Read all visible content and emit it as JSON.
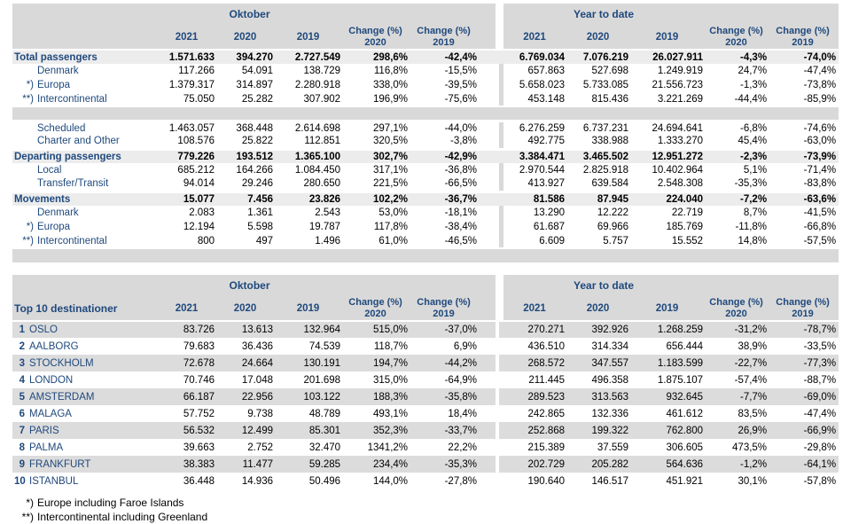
{
  "colors": {
    "accent_navy": "#1F497D",
    "band_gray": "#D9D9D9",
    "section_gray": "#ECECEC",
    "stripe_gray": "#DCDCDC"
  },
  "header": {
    "group_left": "Oktober",
    "group_right": "Year to date",
    "years": [
      "2021",
      "2020",
      "2019"
    ],
    "change_label": "Change (%)",
    "change_years": [
      "2020",
      "2019"
    ]
  },
  "main_table": {
    "rows": [
      {
        "type": "section",
        "label": "Total passengers",
        "values": [
          "1.571.633",
          "394.270",
          "2.727.549",
          "298,6%",
          "-42,4%",
          "6.769.034",
          "7.076.219",
          "26.027.911",
          "-4,3%",
          "-74,0%"
        ]
      },
      {
        "type": "item",
        "marker": "",
        "label": "Denmark",
        "values": [
          "117.266",
          "54.091",
          "138.729",
          "116,8%",
          "-15,5%",
          "657.863",
          "527.698",
          "1.249.919",
          "24,7%",
          "-47,4%"
        ]
      },
      {
        "type": "item",
        "marker": "*)",
        "label": "Europa",
        "values": [
          "1.379.317",
          "314.897",
          "2.280.918",
          "338,0%",
          "-39,5%",
          "5.658.023",
          "5.733.085",
          "21.556.723",
          "-1,3%",
          "-73,8%"
        ]
      },
      {
        "type": "item",
        "marker": "**)",
        "label": "Intercontinental",
        "values": [
          "75.050",
          "25.282",
          "307.902",
          "196,9%",
          "-75,6%",
          "453.148",
          "815.436",
          "3.221.269",
          "-44,4%",
          "-85,9%"
        ]
      },
      {
        "type": "separator"
      },
      {
        "type": "item",
        "marker": "",
        "label": "Scheduled",
        "values": [
          "1.463.057",
          "368.448",
          "2.614.698",
          "297,1%",
          "-44,0%",
          "6.276.259",
          "6.737.231",
          "24.694.641",
          "-6,8%",
          "-74,6%"
        ]
      },
      {
        "type": "item",
        "marker": "",
        "label": "Charter and Other",
        "values": [
          "108.576",
          "25.822",
          "112.851",
          "320,5%",
          "-3,8%",
          "492.775",
          "338.988",
          "1.333.270",
          "45,4%",
          "-63,0%"
        ]
      },
      {
        "type": "section",
        "gap": true,
        "label": "Departing passengers",
        "values": [
          "779.226",
          "193.512",
          "1.365.100",
          "302,7%",
          "-42,9%",
          "3.384.471",
          "3.465.502",
          "12.951.272",
          "-2,3%",
          "-73,9%"
        ]
      },
      {
        "type": "item",
        "marker": "",
        "label": "Local",
        "values": [
          "685.212",
          "164.266",
          "1.084.450",
          "317,1%",
          "-36,8%",
          "2.970.544",
          "2.825.918",
          "10.402.964",
          "5,1%",
          "-71,4%"
        ]
      },
      {
        "type": "item",
        "marker": "",
        "label": "Transfer/Transit",
        "values": [
          "94.014",
          "29.246",
          "280.650",
          "221,5%",
          "-66,5%",
          "413.927",
          "639.584",
          "2.548.308",
          "-35,3%",
          "-83,8%"
        ]
      },
      {
        "type": "section",
        "gap": true,
        "label": "Movements",
        "values": [
          "15.077",
          "7.456",
          "23.826",
          "102,2%",
          "-36,7%",
          "81.586",
          "87.945",
          "224.040",
          "-7,2%",
          "-63,6%"
        ]
      },
      {
        "type": "item",
        "marker": "",
        "label": "Denmark",
        "values": [
          "2.083",
          "1.361",
          "2.543",
          "53,0%",
          "-18,1%",
          "13.290",
          "12.222",
          "22.719",
          "8,7%",
          "-41,5%"
        ]
      },
      {
        "type": "item",
        "marker": "*)",
        "label": "Europa",
        "values": [
          "12.194",
          "5.598",
          "19.787",
          "117,8%",
          "-38,4%",
          "61.687",
          "69.966",
          "185.769",
          "-11,8%",
          "-66,8%"
        ]
      },
      {
        "type": "item",
        "marker": "**)",
        "label": "Intercontinental",
        "values": [
          "800",
          "497",
          "1.496",
          "61,0%",
          "-46,5%",
          "6.609",
          "5.757",
          "15.552",
          "14,8%",
          "-57,5%"
        ]
      },
      {
        "type": "separator",
        "bottom": true
      }
    ]
  },
  "top10": {
    "title": "Top 10 destinationer",
    "rows": [
      {
        "rank": "1",
        "city": "OSLO",
        "values": [
          "83.726",
          "13.613",
          "132.964",
          "515,0%",
          "-37,0%",
          "270.271",
          "392.926",
          "1.268.259",
          "-31,2%",
          "-78,7%"
        ]
      },
      {
        "rank": "2",
        "city": "AALBORG",
        "values": [
          "79.683",
          "36.436",
          "74.539",
          "118,7%",
          "6,9%",
          "436.510",
          "314.334",
          "656.444",
          "38,9%",
          "-33,5%"
        ]
      },
      {
        "rank": "3",
        "city": "STOCKHOLM",
        "values": [
          "72.678",
          "24.664",
          "130.191",
          "194,7%",
          "-44,2%",
          "268.572",
          "347.557",
          "1.183.599",
          "-22,7%",
          "-77,3%"
        ]
      },
      {
        "rank": "4",
        "city": "LONDON",
        "values": [
          "70.746",
          "17.048",
          "201.698",
          "315,0%",
          "-64,9%",
          "211.445",
          "496.358",
          "1.875.107",
          "-57,4%",
          "-88,7%"
        ]
      },
      {
        "rank": "5",
        "city": "AMSTERDAM",
        "values": [
          "66.187",
          "22.956",
          "103.122",
          "188,3%",
          "-35,8%",
          "289.523",
          "313.563",
          "932.645",
          "-7,7%",
          "-69,0%"
        ]
      },
      {
        "rank": "6",
        "city": "MALAGA",
        "values": [
          "57.752",
          "9.738",
          "48.789",
          "493,1%",
          "18,4%",
          "242.865",
          "132.336",
          "461.612",
          "83,5%",
          "-47,4%"
        ]
      },
      {
        "rank": "7",
        "city": "PARIS",
        "values": [
          "56.532",
          "12.499",
          "85.301",
          "352,3%",
          "-33,7%",
          "252.868",
          "199.322",
          "762.800",
          "26,9%",
          "-66,9%"
        ]
      },
      {
        "rank": "8",
        "city": "PALMA",
        "values": [
          "39.663",
          "2.752",
          "32.470",
          "1341,2%",
          "22,2%",
          "215.389",
          "37.559",
          "306.605",
          "473,5%",
          "-29,8%"
        ]
      },
      {
        "rank": "9",
        "city": "FRANKFURT",
        "values": [
          "38.383",
          "11.477",
          "59.285",
          "234,4%",
          "-35,3%",
          "202.729",
          "205.282",
          "564.636",
          "-1,2%",
          "-64,1%"
        ]
      },
      {
        "rank": "10",
        "city": "ISTANBUL",
        "values": [
          "36.448",
          "14.936",
          "50.496",
          "144,0%",
          "-27,8%",
          "190.640",
          "146.517",
          "451.921",
          "30,1%",
          "-57,8%"
        ]
      }
    ]
  },
  "footnotes": [
    {
      "marker": "*)",
      "text": "Europe including Faroe Islands"
    },
    {
      "marker": "**)",
      "text": "Intercontinental including Greenland"
    }
  ]
}
